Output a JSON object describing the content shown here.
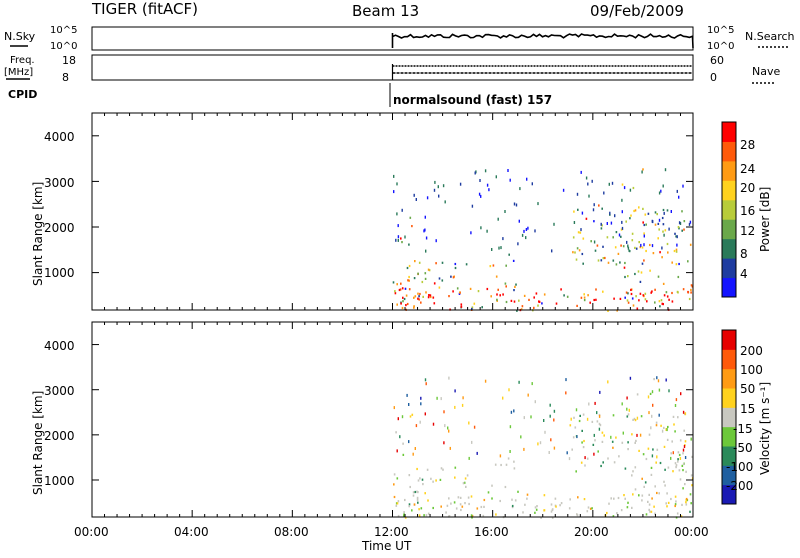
{
  "header": {
    "station": "TIGER (fitACF)",
    "beam": "Beam 13",
    "date": "09/Feb/2009"
  },
  "strip_labels": {
    "nsky": "N.Sky",
    "nsky_top": "10^5",
    "nsky_bot": "10^0",
    "nsearch": "N.Search",
    "nsearch_top": "10^5",
    "nsearch_bot": "10^0",
    "freq": "Freq.",
    "freq_unit": "[MHz]",
    "freq_top": "18",
    "freq_bot": "8",
    "nave": "Nave",
    "nave_top": "60",
    "nave_bot": "0",
    "cpid": "CPID",
    "cpid_text": "normalsound (fast) 157"
  },
  "power_colorbar": {
    "label": "Power [dB]",
    "ticks": [
      "28",
      "24",
      "20",
      "16",
      "12",
      "8",
      "4"
    ],
    "colors": [
      "#1414ff",
      "#1e3ca0",
      "#2a7a5a",
      "#6aa84a",
      "#b8cc3a",
      "#ffd21e",
      "#ff9b14",
      "#ff5a0a",
      "#ff0000"
    ]
  },
  "velocity_colorbar": {
    "label": "Velocity [m s⁻¹]",
    "ticks": [
      "200",
      "100",
      "50",
      "15",
      "-15",
      "-50",
      "-100",
      "-200"
    ],
    "colors": [
      "#1a1ab4",
      "#1f5fa0",
      "#2a8a5a",
      "#6cc83a",
      "#c8c8c0",
      "#ffd21e",
      "#ff9b14",
      "#ff5a0a",
      "#e60000"
    ]
  },
  "axes": {
    "ylabel": "Slant Range [km]",
    "xlabel": "Time UT",
    "y_ticks": [
      "1000",
      "2000",
      "3000",
      "4000"
    ],
    "x_ticks": [
      "00:00",
      "04:00",
      "08:00",
      "12:00",
      "16:00",
      "20:00",
      "00:00"
    ]
  },
  "chart_data": {
    "type": "heatmap",
    "title": "Beam 13",
    "xlabel": "Time UT",
    "ylabel": "Slant Range [km]",
    "x_range_hours": [
      0,
      24
    ],
    "y_range_km": [
      180,
      4500
    ],
    "data_start_hour": 12,
    "panels": [
      {
        "name": "Power",
        "unit": "dB",
        "scale": [
          0,
          32
        ]
      },
      {
        "name": "Velocity",
        "unit": "m s⁻¹",
        "scale": [
          -250,
          250
        ]
      }
    ],
    "series": [
      {
        "name": "N.Sky",
        "start_hour": 12,
        "level": "10^5"
      },
      {
        "name": "Freq.",
        "start_hour": 12,
        "values_mhz": [
          12,
          9
        ]
      }
    ]
  }
}
